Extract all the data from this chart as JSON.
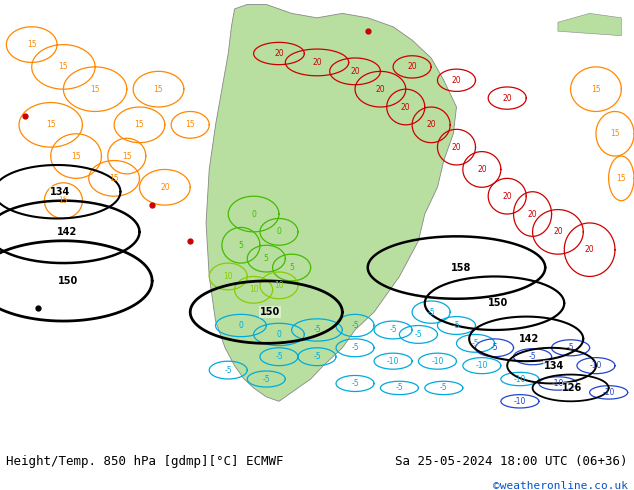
{
  "title_left": "Height/Temp. 850 hPa [gdmp][°C] ECMWF",
  "title_right": "Sa 25-05-2024 18:00 UTC (06+36)",
  "credit": "©weatheronline.co.uk",
  "bg_color": "#ffffff",
  "fig_width": 6.34,
  "fig_height": 4.9,
  "dpi": 100,
  "font_size_bottom": 9.0,
  "font_size_credit": 8.0,
  "credit_color": "#0055cc",
  "text_color": "#000000"
}
